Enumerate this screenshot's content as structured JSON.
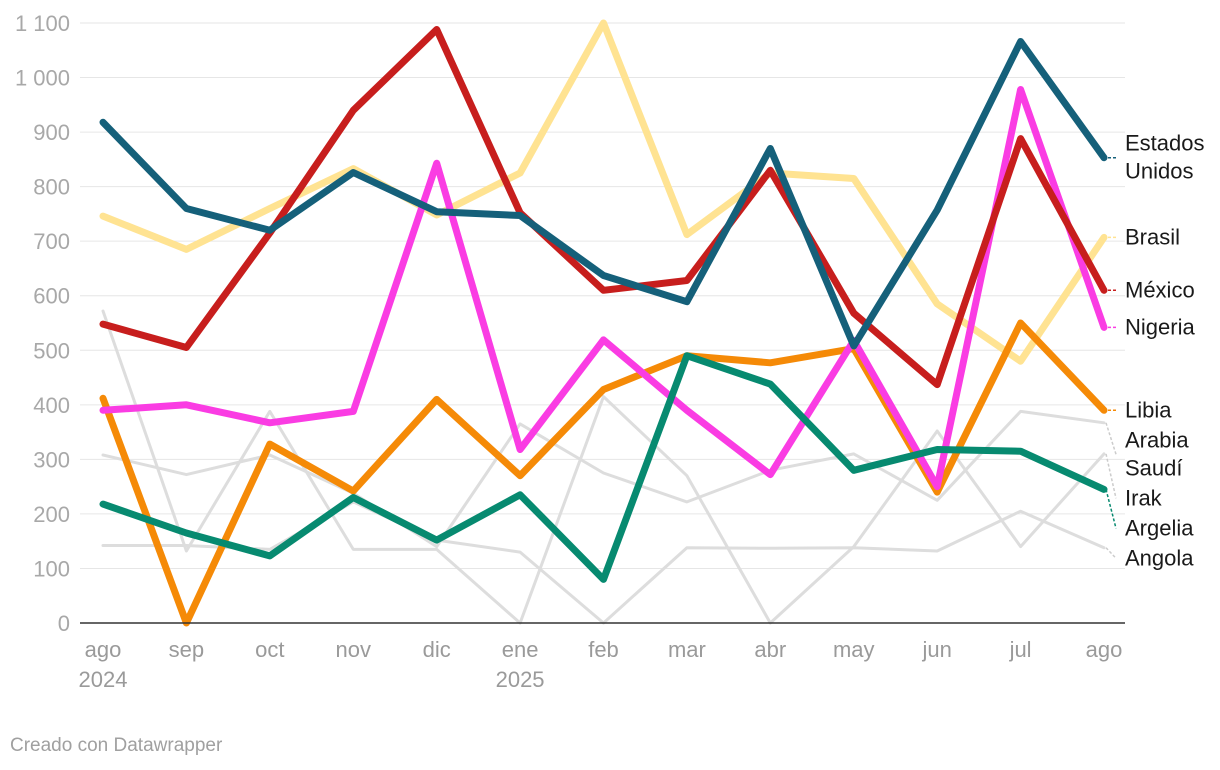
{
  "chart_data": {
    "type": "line",
    "title": "",
    "xlabel": "",
    "ylabel": "",
    "ylim": [
      0,
      1100
    ],
    "y_ticks": [
      0,
      100,
      200,
      300,
      400,
      500,
      600,
      700,
      800,
      900,
      1000,
      1100
    ],
    "y_tick_labels": [
      "0",
      "100",
      "200",
      "300",
      "400",
      "500",
      "600",
      "700",
      "800",
      "900",
      "1 000",
      "1 100"
    ],
    "categories": [
      "ago",
      "sep",
      "oct",
      "nov",
      "dic",
      "ene",
      "feb",
      "mar",
      "abr",
      "may",
      "jun",
      "jul",
      "ago"
    ],
    "year_labels": [
      {
        "index": 0,
        "label": "2024"
      },
      {
        "index": 5,
        "label": "2025"
      }
    ],
    "grid": true,
    "series": [
      {
        "name": "Arabia Saudí",
        "label_lines": [
          "Arabia",
          "Saudí"
        ],
        "color": "#dddddd",
        "highlight": false,
        "values": [
          308,
          272,
          308,
          238,
          140,
          365,
          275,
          222,
          280,
          310,
          225,
          388,
          367
        ]
      },
      {
        "name": "Irak",
        "label_lines": [
          "Irak"
        ],
        "color": "#dddddd",
        "highlight": false,
        "values": [
          572,
          132,
          388,
          135,
          135,
          0,
          415,
          270,
          0,
          140,
          352,
          140,
          310
        ]
      },
      {
        "name": "Angola",
        "label_lines": [
          "Angola"
        ],
        "color": "#dddddd",
        "highlight": false,
        "values": [
          142,
          142,
          135,
          222,
          152,
          130,
          0,
          138,
          137,
          138,
          132,
          205,
          138
        ]
      },
      {
        "name": "Brasil",
        "label_lines": [
          "Brasil"
        ],
        "color": "#ffe392",
        "highlight": true,
        "values": [
          746,
          685,
          760,
          833,
          748,
          825,
          1100,
          712,
          825,
          815,
          585,
          480,
          707
        ]
      },
      {
        "name": "Libia",
        "label_lines": [
          "Libia"
        ],
        "color": "#f58a07",
        "highlight": true,
        "values": [
          412,
          0,
          328,
          242,
          410,
          270,
          428,
          490,
          477,
          503,
          240,
          550,
          390
        ]
      },
      {
        "name": "Nigeria",
        "label_lines": [
          "Nigeria"
        ],
        "color": "#fa3ce3",
        "highlight": true,
        "values": [
          390,
          400,
          367,
          388,
          843,
          318,
          519,
          390,
          272,
          518,
          250,
          978,
          542
        ]
      },
      {
        "name": "Argelia",
        "label_lines": [
          "Argelia"
        ],
        "color": "#078a70",
        "highlight": true,
        "values": [
          218,
          165,
          123,
          230,
          152,
          235,
          80,
          490,
          438,
          280,
          318,
          315,
          245
        ]
      },
      {
        "name": "México",
        "label_lines": [
          "México"
        ],
        "color": "#c71e1d",
        "highlight": true,
        "values": [
          548,
          505,
          715,
          940,
          1088,
          752,
          610,
          628,
          830,
          568,
          437,
          888,
          610
        ]
      },
      {
        "name": "Estados Unidos",
        "label_lines": [
          "Estados",
          "Unidos"
        ],
        "color": "#15607a",
        "highlight": true,
        "values": [
          918,
          760,
          720,
          826,
          754,
          747,
          637,
          589,
          870,
          508,
          757,
          1066,
          853
        ]
      }
    ]
  },
  "footer": {
    "credit": "Creado con Datawrapper"
  }
}
